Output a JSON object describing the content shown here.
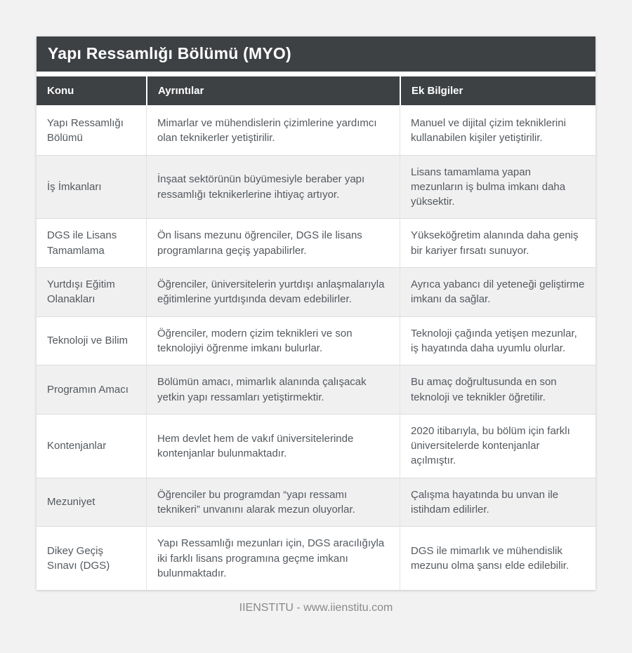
{
  "title": "Yapı Ressamlığı Bölümü (MYO)",
  "columns": [
    "Konu",
    "Ayrıntılar",
    "Ek Bilgiler"
  ],
  "rows": [
    {
      "konu": "Yapı Ressamlığı Bölümü",
      "ayrintilar": "Mimarlar ve mühendislerin çizimlerine yardımcı olan teknikerler yetiştirilir.",
      "ek_bilgiler": "Manuel ve dijital çizim tekniklerini kullanabilen kişiler yetiştirilir."
    },
    {
      "konu": "İş İmkanları",
      "ayrintilar": "İnşaat sektörünün büyümesiyle beraber yapı ressamlığı teknikerlerine ihtiyaç artıyor.",
      "ek_bilgiler": "Lisans tamamlama yapan mezunların iş bulma imkanı daha yüksektir."
    },
    {
      "konu": "DGS ile Lisans Tamamlama",
      "ayrintilar": "Ön lisans mezunu öğrenciler, DGS ile lisans programlarına geçiş yapabilirler.",
      "ek_bilgiler": "Yükseköğretim alanında daha geniş bir kariyer fırsatı sunuyor."
    },
    {
      "konu": "Yurtdışı Eğitim Olanakları",
      "ayrintilar": "Öğrenciler, üniversitelerin yurtdışı anlaşmalarıyla eğitimlerine yurtdışında devam edebilirler.",
      "ek_bilgiler": "Ayrıca yabancı dil yeteneği geliştirme imkanı da sağlar."
    },
    {
      "konu": "Teknoloji ve Bilim",
      "ayrintilar": "Öğrenciler, modern çizim teknikleri ve son teknolojiyi öğrenme imkanı bulurlar.",
      "ek_bilgiler": "Teknoloji çağında yetişen mezunlar, iş hayatında daha uyumlu olurlar."
    },
    {
      "konu": "Programın Amacı",
      "ayrintilar": "Bölümün amacı, mimarlık alanında çalışacak yetkin yapı ressamları yetiştirmektir.",
      "ek_bilgiler": "Bu amaç doğrultusunda en son teknoloji ve teknikler öğretilir."
    },
    {
      "konu": "Kontenjanlar",
      "ayrintilar": "Hem devlet hem de vakıf üniversitelerinde kontenjanlar bulunmaktadır.",
      "ek_bilgiler": "2020 itibarıyla, bu bölüm için farklı üniversitelerde kontenjanlar açılmıştır."
    },
    {
      "konu": "Mezuniyet",
      "ayrintilar": "Öğrenciler bu programdan “yapı ressamı teknikeri” unvanını alarak mezun oluyorlar.",
      "ek_bilgiler": "Çalışma hayatında bu unvan ile istihdam edilirler."
    },
    {
      "konu": "Dikey Geçiş Sınavı (DGS)",
      "ayrintilar": "Yapı Ressamlığı mezunları için, DGS aracılığıyla iki farklı lisans programına geçme imkanı bulunmaktadır.",
      "ek_bilgiler": "DGS ile mimarlık ve mühendislik mezunu olma şansı elde edilebilir."
    }
  ],
  "footer": "IIENSTITU - www.iienstitu.com",
  "colors": {
    "header_bg": "#3e4144",
    "page_bg": "#f2f2f2",
    "card_bg": "#ffffff",
    "alt_row_bg": "#f0f0f1",
    "body_text": "#54595e",
    "footer_text": "#8a8a8a"
  }
}
